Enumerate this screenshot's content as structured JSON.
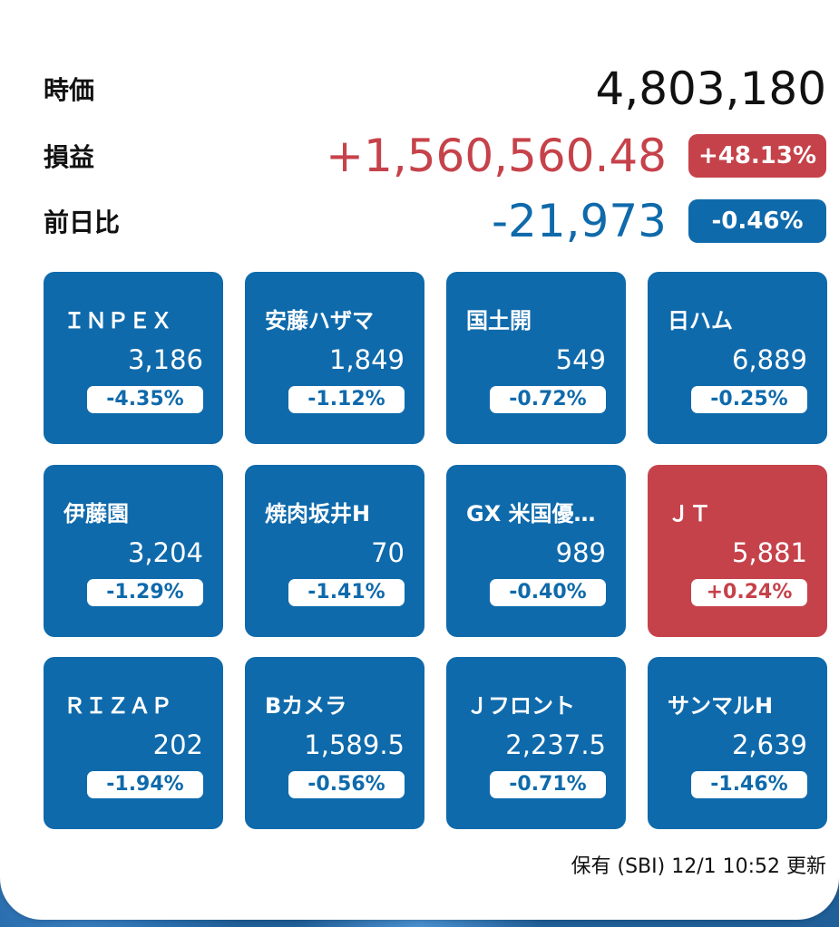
{
  "colors": {
    "up": "#c6424a",
    "down": "#0f6aab"
  },
  "summary": {
    "market_value": {
      "label": "時価",
      "value": "4,803,180"
    },
    "profit": {
      "label": "損益",
      "value": "+1,560,560.48",
      "pct": "+48.13%"
    },
    "day_change": {
      "label": "前日比",
      "value": "-21,973",
      "pct": "-0.46%"
    }
  },
  "stocks": [
    {
      "name": "ＩＮＰＥＸ",
      "price": "3,186",
      "change": "-4.35%",
      "trend": "down"
    },
    {
      "name": "安藤ハザマ",
      "price": "1,849",
      "change": "-1.12%",
      "trend": "down"
    },
    {
      "name": "国土開",
      "price": "549",
      "change": "-0.72%",
      "trend": "down"
    },
    {
      "name": "日ハム",
      "price": "6,889",
      "change": "-0.25%",
      "trend": "down"
    },
    {
      "name": "伊藤園",
      "price": "3,204",
      "change": "-1.29%",
      "trend": "down"
    },
    {
      "name": "焼肉坂井H",
      "price": "70",
      "change": "-1.41%",
      "trend": "down"
    },
    {
      "name": "GX 米国優…",
      "price": "989",
      "change": "-0.40%",
      "trend": "down"
    },
    {
      "name": "ＪＴ",
      "price": "5,881",
      "change": "+0.24%",
      "trend": "up"
    },
    {
      "name": "ＲＩＺＡＰ",
      "price": "202",
      "change": "-1.94%",
      "trend": "down"
    },
    {
      "name": "Bカメラ",
      "price": "1,589.5",
      "change": "-0.56%",
      "trend": "down"
    },
    {
      "name": "Ｊフロント",
      "price": "2,237.5",
      "change": "-0.71%",
      "trend": "down"
    },
    {
      "name": "サンマルH",
      "price": "2,639",
      "change": "-1.46%",
      "trend": "down"
    }
  ],
  "footer": {
    "text": "保有 (SBI) 12/1 10:52 更新"
  }
}
